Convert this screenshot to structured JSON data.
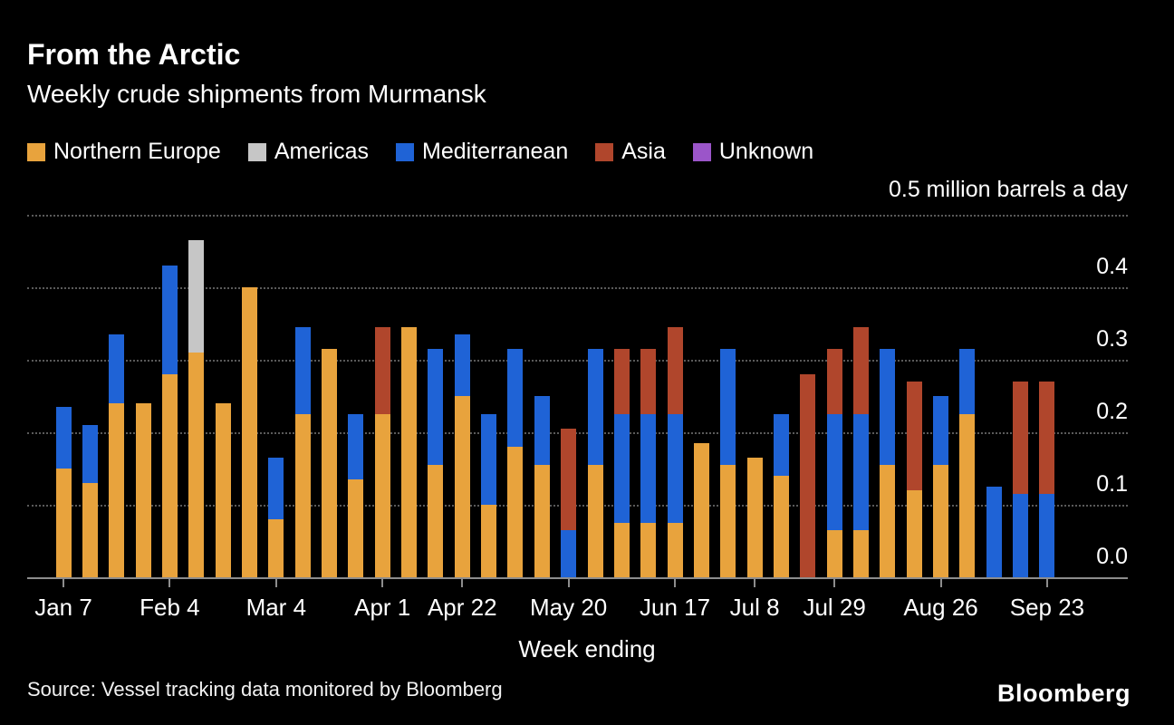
{
  "header": {
    "title": "From the Arctic",
    "subtitle": "Weekly crude shipments from Murmansk"
  },
  "legend": {
    "items": [
      {
        "label": "Northern Europe",
        "color": "#E8A33D"
      },
      {
        "label": "Americas",
        "color": "#C6C6C6"
      },
      {
        "label": "Mediterranean",
        "color": "#1F63D6"
      },
      {
        "label": "Asia",
        "color": "#B0462C"
      },
      {
        "label": "Unknown",
        "color": "#9B55C9"
      }
    ]
  },
  "y_axis": {
    "top_label": "0.5 million barrels a day",
    "ticks": [
      {
        "label": "0.4",
        "value": 0.4
      },
      {
        "label": "0.3",
        "value": 0.3
      },
      {
        "label": "0.2",
        "value": 0.2
      },
      {
        "label": "0.1",
        "value": 0.1
      },
      {
        "label": "0.0",
        "value": 0.0
      }
    ],
    "gridline_values": [
      0.5,
      0.4,
      0.3,
      0.2,
      0.1
    ]
  },
  "x_axis": {
    "title": "Week ending",
    "tick_labels": [
      "Jan 7",
      "Feb 4",
      "Mar 4",
      "Apr 1",
      "Apr 22",
      "May 20",
      "Jun 17",
      "Jul 8",
      "Jul 29",
      "Aug 26",
      "Sep 23"
    ],
    "tick_indices": [
      0,
      4,
      8,
      12,
      15,
      19,
      23,
      26,
      29,
      33,
      37
    ]
  },
  "footer": {
    "source": "Source: Vessel tracking data monitored by Bloomberg",
    "logo": "Bloomberg"
  },
  "chart_data": {
    "type": "bar",
    "stacked": true,
    "title": "From the Arctic",
    "subtitle": "Weekly crude shipments from Murmansk",
    "unit": "million barrels a day",
    "xlabel": "Week ending",
    "ylim": [
      0,
      0.5
    ],
    "grid": "dotted horizontal",
    "legend_position": "top",
    "categories": [
      "Jan 7",
      "Jan 14",
      "Jan 21",
      "Jan 28",
      "Feb 4",
      "Feb 11",
      "Feb 18",
      "Feb 25",
      "Mar 4",
      "Mar 11",
      "Mar 18",
      "Mar 25",
      "Apr 1",
      "Apr 8",
      "Apr 15",
      "Apr 22",
      "Apr 29",
      "May 6",
      "May 13",
      "May 20",
      "May 27",
      "Jun 3",
      "Jun 10",
      "Jun 17",
      "Jun 24",
      "Jul 1",
      "Jul 8",
      "Jul 15",
      "Jul 22",
      "Jul 29",
      "Aug 5",
      "Aug 12",
      "Aug 19",
      "Aug 26",
      "Sep 2",
      "Sep 9",
      "Sep 16",
      "Sep 23"
    ],
    "series": [
      {
        "name": "Northern Europe",
        "color": "#E8A33D",
        "values": [
          0.15,
          0.13,
          0.24,
          0.24,
          0.28,
          0.31,
          0.24,
          0.4,
          0.08,
          0.225,
          0.315,
          0.135,
          0.225,
          0.345,
          0.155,
          0.25,
          0.1,
          0.18,
          0.155,
          0,
          0.155,
          0.075,
          0.075,
          0.075,
          0.185,
          0.155,
          0.165,
          0.14,
          0,
          0.065,
          0.065,
          0.155,
          0.12,
          0.155,
          0.225,
          0,
          0,
          0
        ]
      },
      {
        "name": "Americas",
        "color": "#C6C6C6",
        "values": [
          0,
          0,
          0,
          0,
          0,
          0.155,
          0,
          0,
          0,
          0,
          0,
          0,
          0,
          0,
          0,
          0,
          0,
          0,
          0,
          0,
          0,
          0,
          0,
          0,
          0,
          0,
          0,
          0,
          0,
          0,
          0,
          0,
          0,
          0,
          0,
          0,
          0,
          0
        ]
      },
      {
        "name": "Mediterranean",
        "color": "#1F63D6",
        "values": [
          0.085,
          0.08,
          0.095,
          0,
          0.15,
          0,
          0,
          0,
          0.085,
          0.12,
          0,
          0.09,
          0,
          0,
          0.16,
          0.085,
          0.125,
          0.135,
          0.095,
          0.065,
          0.16,
          0.15,
          0.15,
          0.15,
          0,
          0.16,
          0,
          0.085,
          0,
          0.16,
          0.16,
          0.16,
          0,
          0.095,
          0.09,
          0.125,
          0.115,
          0.115
        ]
      },
      {
        "name": "Asia",
        "color": "#B0462C",
        "values": [
          0,
          0,
          0,
          0,
          0,
          0,
          0,
          0,
          0,
          0,
          0,
          0,
          0.12,
          0,
          0,
          0,
          0,
          0,
          0,
          0.14,
          0,
          0.09,
          0.09,
          0.12,
          0,
          0,
          0,
          0,
          0.28,
          0.09,
          0.12,
          0,
          0.15,
          0,
          0,
          0,
          0.155,
          0.155
        ]
      },
      {
        "name": "Unknown",
        "color": "#9B55C9",
        "values": [
          0,
          0,
          0,
          0,
          0,
          0,
          0,
          0,
          0,
          0,
          0,
          0,
          0,
          0,
          0,
          0,
          0,
          0,
          0,
          0,
          0,
          0,
          0,
          0,
          0,
          0,
          0,
          0,
          0,
          0,
          0,
          0,
          0,
          0,
          0,
          0,
          0,
          0
        ]
      }
    ]
  }
}
